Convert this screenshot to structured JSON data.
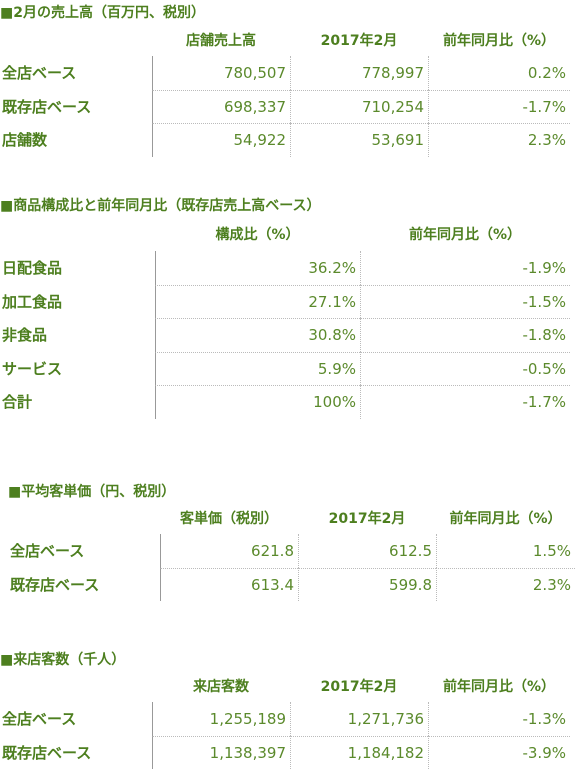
{
  "sections": [
    {
      "title": "■2月の売上高（百万円、税別）",
      "headers": [
        "店舗売上高",
        "2017年2月",
        "前年同月比（%）"
      ],
      "rows": [
        [
          "全店ベース",
          "780,507",
          "778,997",
          "0.2%"
        ],
        [
          "既存店ベース",
          "698,337",
          "710,254",
          "-1.7%"
        ],
        [
          "店舗数",
          "54,922",
          "53,691",
          "2.3%"
        ]
      ]
    },
    {
      "title": "■商品構成比と前年同月比（既存店売上高ベース）",
      "headers": [
        "構成比（%）",
        "前年同月比（%）"
      ],
      "rows": [
        [
          "日配食品",
          "36.2%",
          "-1.9%"
        ],
        [
          "加工食品",
          "27.1%",
          "-1.5%"
        ],
        [
          "非食品",
          "30.8%",
          "-1.8%"
        ],
        [
          "サービス",
          "5.9%",
          "-0.5%"
        ],
        [
          "合計",
          "100%",
          "-1.7%"
        ]
      ]
    },
    {
      "title": "■平均客単価（円、税別）",
      "headers": [
        "客単価（税別）",
        "2017年2月",
        "前年同月比（%）"
      ],
      "rows": [
        [
          "全店ベース",
          "621.8",
          "612.5",
          "1.5%"
        ],
        [
          "既存店ベース",
          "613.4",
          "599.8",
          "2.3%"
        ]
      ]
    },
    {
      "title": "■来店客数（千人）",
      "headers": [
        "来店客数",
        "2017年2月",
        "前年同月比（%）"
      ],
      "rows": [
        [
          "全店ベース",
          "1,255,189",
          "1,271,736",
          "-1.3%"
        ],
        [
          "既存店ベース",
          "1,138,397",
          "1,184,182",
          "-3.9%"
        ]
      ]
    }
  ]
}
